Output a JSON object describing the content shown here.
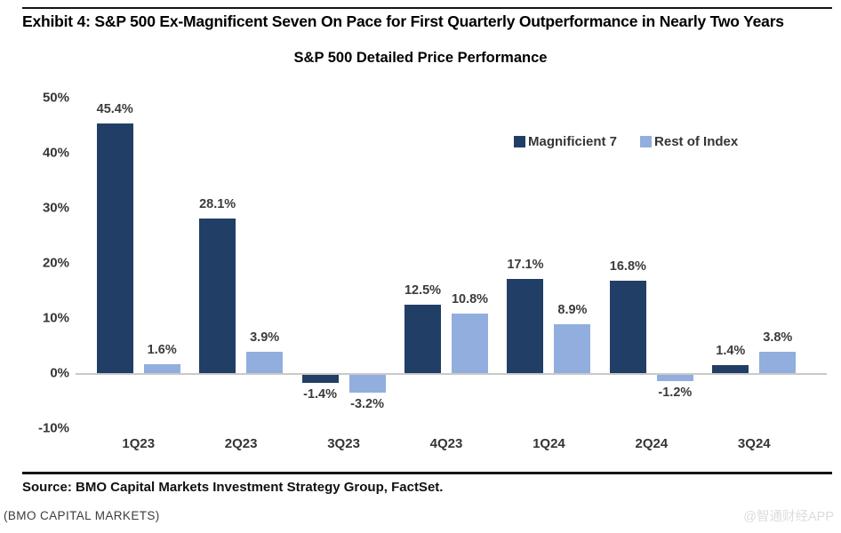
{
  "page": {
    "exhibit_title": "Exhibit 4: S&P 500 Ex-Magnificent Seven On Pace for First Quarterly Outperformance in Nearly Two Years",
    "chart_title": "S&P 500 Detailed Price Performance",
    "source_line": "Source: BMO Capital Markets Investment Strategy Group, FactSet.",
    "footer_left": "(BMO CAPITAL MARKETS)",
    "watermark": "@智通财经APP"
  },
  "chart_data": {
    "type": "bar",
    "title": "S&P 500 Detailed Price Performance",
    "categories": [
      "1Q23",
      "2Q23",
      "3Q23",
      "4Q23",
      "1Q24",
      "2Q24",
      "3Q24"
    ],
    "series": [
      {
        "name": "Magnificient 7",
        "color": "#213e66",
        "values": [
          45.4,
          28.1,
          -1.4,
          12.5,
          17.1,
          16.8,
          1.4
        ]
      },
      {
        "name": "Rest of Index",
        "color": "#91aede",
        "values": [
          1.6,
          3.9,
          -3.2,
          10.8,
          8.9,
          -1.2,
          3.8
        ]
      }
    ],
    "y_ticks": [
      "50%",
      "40%",
      "30%",
      "20%",
      "10%",
      "0%",
      "-10%"
    ],
    "y_tick_values": [
      50,
      40,
      30,
      20,
      10,
      0,
      -10
    ],
    "ylim": [
      -10,
      50
    ],
    "grid": false,
    "legend_position": "top-right",
    "value_label_format": "one_decimal_percent",
    "baseline_color": "#c9c9c9"
  }
}
